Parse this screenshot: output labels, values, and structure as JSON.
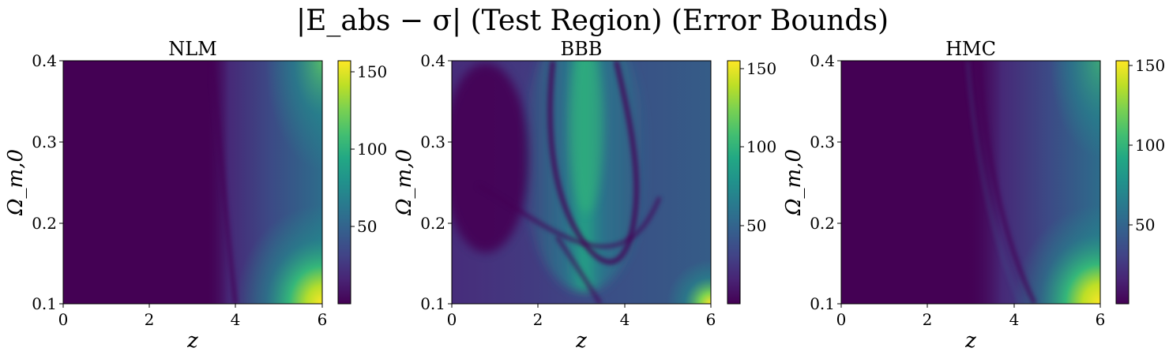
{
  "figure": {
    "title": "|E_abs − σ| (Test Region) (Error Bounds)"
  },
  "colors": {
    "viridis_low": "#440154",
    "viridis_mid": "#21918c",
    "viridis_high": "#fde725"
  },
  "chart_data": [
    {
      "type": "heatmap",
      "title": "NLM",
      "xlabel": "z",
      "ylabel": "Ω_m,0",
      "xlim": [
        0,
        6
      ],
      "ylim": [
        0.1,
        0.4
      ],
      "xticks": [
        0,
        2,
        4,
        6
      ],
      "yticks": [
        0.1,
        0.2,
        0.3,
        0.4
      ],
      "colorbar": {
        "min": 0,
        "max": 160,
        "ticks": [
          50,
          100,
          150
        ]
      },
      "description_values": {
        "max_value_approx": 160,
        "max_location": "bottom-right (z≈6, Ω≈0.1)"
      }
    },
    {
      "type": "heatmap",
      "title": "BBB",
      "xlabel": "z",
      "ylabel": "Ω_m,0",
      "xlim": [
        0,
        6
      ],
      "ylim": [
        0.1,
        0.4
      ],
      "xticks": [
        0,
        2,
        4,
        6
      ],
      "yticks": [
        0.1,
        0.2,
        0.3,
        0.4
      ],
      "colorbar": {
        "min": 0,
        "max": 158,
        "ticks": [
          50,
          100,
          150
        ]
      },
      "description_values": {
        "max_value_approx": 158,
        "max_location": "bottom-right (z≈6, Ω≈0.1)"
      }
    },
    {
      "type": "heatmap",
      "title": "HMC",
      "xlabel": "z",
      "ylabel": "Ω_m,0",
      "xlim": [
        0,
        6
      ],
      "ylim": [
        0.1,
        0.4
      ],
      "xticks": [
        0,
        2,
        4,
        6
      ],
      "yticks": [
        0.1,
        0.2,
        0.3,
        0.4
      ],
      "colorbar": {
        "min": 0,
        "max": 152,
        "ticks": [
          50,
          100,
          150
        ]
      },
      "description_values": {
        "max_value_approx": 152,
        "max_location": "bottom-right (z≈6, Ω≈0.1)"
      }
    }
  ]
}
